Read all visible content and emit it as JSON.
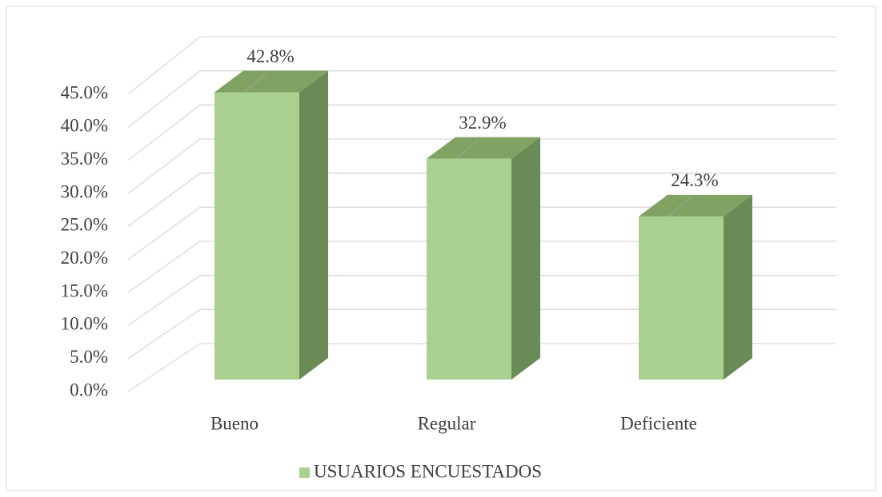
{
  "chart_data": {
    "type": "bar3d",
    "categories": [
      "Bueno",
      "Regular",
      "Deficiente"
    ],
    "series": [
      {
        "name": "USUARIOS ENCUESTADOS",
        "color": "#a9d08e",
        "values": [
          42.8,
          32.9,
          24.3
        ],
        "value_labels": [
          "42.8%",
          "32.9%",
          "24.3%"
        ]
      }
    ],
    "ylim": [
      0,
      45
    ],
    "yticks": [
      {
        "value": 0,
        "label": "0.0%"
      },
      {
        "value": 5,
        "label": "5.0%"
      },
      {
        "value": 10,
        "label": "10.0%"
      },
      {
        "value": 15,
        "label": "15.0%"
      },
      {
        "value": 20,
        "label": "20.0%"
      },
      {
        "value": 25,
        "label": "25.0%"
      },
      {
        "value": 30,
        "label": "30.0%"
      },
      {
        "value": 35,
        "label": "35.0%"
      },
      {
        "value": 40,
        "label": "40.0%"
      },
      {
        "value": 45,
        "label": "45.0%"
      }
    ],
    "grid": true,
    "legend": "bottom"
  }
}
